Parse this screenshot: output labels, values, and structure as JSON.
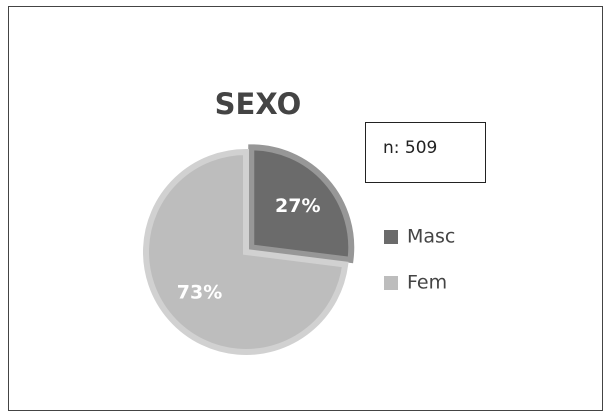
{
  "chart_data": {
    "type": "pie",
    "title": "SEXO",
    "annotation": "n: 509",
    "categories": [
      "Masc",
      "Fem"
    ],
    "values": [
      27,
      73
    ],
    "value_labels": [
      "27%",
      "73%"
    ],
    "colors": [
      "#6b6b6b",
      "#bdbdbd"
    ],
    "legend": "right"
  }
}
